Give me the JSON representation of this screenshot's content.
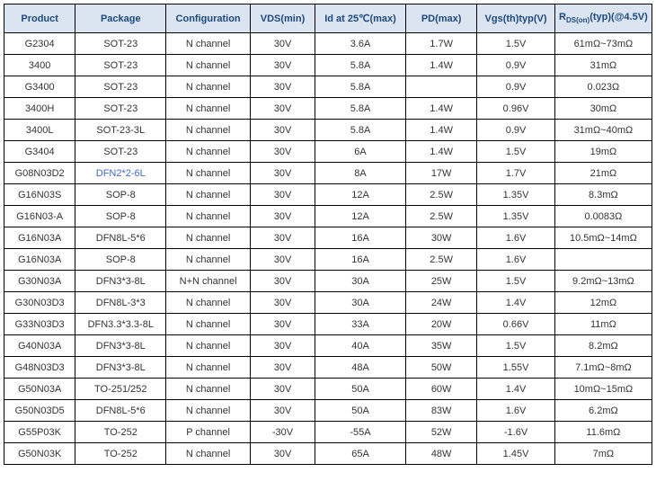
{
  "table": {
    "header_bg": "#dbe5f1",
    "header_color": "#1f497d",
    "border_color": "#000000",
    "cell_color": "#333333",
    "link_color": "#4169c8",
    "background": "#ffffff",
    "col_widths": [
      "11%",
      "14%",
      "13%",
      "10%",
      "14%",
      "11%",
      "12%",
      "15%"
    ],
    "columns": [
      "Product",
      "Package",
      "Configuration",
      "VDS(min)",
      "Id at 25℃(max)",
      "PD(max)",
      "Vgs(th)typ(V)",
      "R_DS(on)(typ)(@4.5V)"
    ],
    "rows": [
      {
        "cells": [
          "G2304",
          "SOT-23",
          "N channel",
          "30V",
          "3.6A",
          "1.7W",
          "1.5V",
          "61mΩ~73mΩ"
        ],
        "link_cols": []
      },
      {
        "cells": [
          "3400",
          "SOT-23",
          "N channel",
          "30V",
          "5.8A",
          "1.4W",
          "0.9V",
          "31mΩ"
        ],
        "link_cols": []
      },
      {
        "cells": [
          "G3400",
          "SOT-23",
          "N channel",
          "30V",
          "5.8A",
          "",
          "0.9V",
          "0.023Ω"
        ],
        "link_cols": []
      },
      {
        "cells": [
          "3400H",
          "SOT-23",
          "N channel",
          "30V",
          "5.8A",
          "1.4W",
          "0.96V",
          "30mΩ"
        ],
        "link_cols": []
      },
      {
        "cells": [
          "3400L",
          "SOT-23-3L",
          "N channel",
          "30V",
          "5.8A",
          "1.4W",
          "0.9V",
          "31mΩ~40mΩ"
        ],
        "link_cols": []
      },
      {
        "cells": [
          "G3404",
          "SOT-23",
          "N channel",
          "30V",
          "6A",
          "1.4W",
          "1.5V",
          "19mΩ"
        ],
        "link_cols": []
      },
      {
        "cells": [
          "G08N03D2",
          "DFN2*2-6L",
          "N channel",
          "30V",
          "8A",
          "17W",
          "1.7V",
          "21mΩ"
        ],
        "link_cols": [
          1
        ]
      },
      {
        "cells": [
          "G16N03S",
          "SOP-8",
          "N channel",
          "30V",
          "12A",
          "2.5W",
          "1.35V",
          "8.3mΩ"
        ],
        "link_cols": []
      },
      {
        "cells": [
          "G16N03-A",
          "SOP-8",
          "N channel",
          "30V",
          "12A",
          "2.5W",
          "1.35V",
          "0.0083Ω"
        ],
        "link_cols": []
      },
      {
        "cells": [
          "G16N03A",
          "DFN8L-5*6",
          "N channel",
          "30V",
          "16A",
          "30W",
          "1.6V",
          "10.5mΩ~14mΩ"
        ],
        "link_cols": []
      },
      {
        "cells": [
          "G16N03A",
          "SOP-8",
          "N channel",
          "30V",
          "16A",
          "2.5W",
          "1.6V",
          ""
        ],
        "link_cols": []
      },
      {
        "cells": [
          "G30N03A",
          "DFN3*3-8L",
          "N+N channel",
          "30V",
          "30A",
          "25W",
          "1.5V",
          "9.2mΩ~13mΩ"
        ],
        "link_cols": []
      },
      {
        "cells": [
          "G30N03D3",
          "DFN8L-3*3",
          "N channel",
          "30V",
          "30A",
          "24W",
          "1.4V",
          "12mΩ"
        ],
        "link_cols": []
      },
      {
        "cells": [
          "G33N03D3",
          "DFN3.3*3.3-8L",
          "N channel",
          "30V",
          "33A",
          "20W",
          "0.66V",
          "11mΩ"
        ],
        "link_cols": []
      },
      {
        "cells": [
          "G40N03A",
          "DFN3*3-8L",
          "N channel",
          "30V",
          "40A",
          "35W",
          "1.5V",
          "8.2mΩ"
        ],
        "link_cols": []
      },
      {
        "cells": [
          "G48N03D3",
          "DFN3*3-8L",
          "N channel",
          "30V",
          "48A",
          "50W",
          "1.55V",
          "7.1mΩ~8mΩ"
        ],
        "link_cols": []
      },
      {
        "cells": [
          "G50N03A",
          "TO-251/252",
          "N channel",
          "30V",
          "50A",
          "60W",
          "1.4V",
          "10mΩ~15mΩ"
        ],
        "link_cols": []
      },
      {
        "cells": [
          "G50N03D5",
          "DFN8L-5*6",
          "N channel",
          "30V",
          "50A",
          "83W",
          "1.6V",
          "6.2mΩ"
        ],
        "link_cols": []
      },
      {
        "cells": [
          "G55P03K",
          "TO-252",
          "P channel",
          "-30V",
          "-55A",
          "52W",
          "-1.6V",
          "11.6mΩ"
        ],
        "link_cols": []
      },
      {
        "cells": [
          "G50N03K",
          "TO-252",
          "N channel",
          "30V",
          "65A",
          "48W",
          "1.45V",
          "7mΩ"
        ],
        "link_cols": []
      }
    ]
  }
}
